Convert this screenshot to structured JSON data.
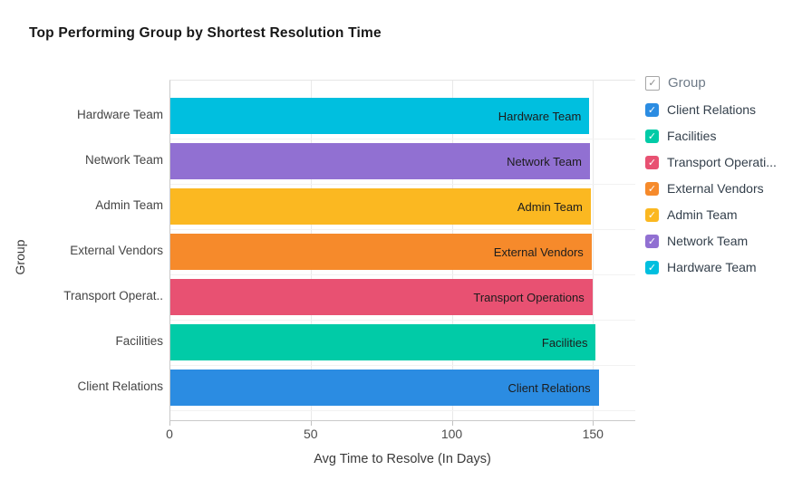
{
  "chart_data": {
    "type": "bar",
    "orientation": "horizontal",
    "title": "Top Performing Group by Shortest Resolution Time",
    "xlabel": "Avg Time to Resolve (In Days)",
    "ylabel": "Group",
    "categories": [
      "Hardware Team",
      "Network Team",
      "Admin Team",
      "External Vendors",
      "Transport Operations",
      "Facilities",
      "Client Relations"
    ],
    "axis_category_labels": [
      "Hardware Team",
      "Network Team",
      "Admin Team",
      "External Vendors",
      "Transport Operat..",
      "Facilities",
      "Client Relations"
    ],
    "bar_labels": [
      "Hardware Team",
      "Network Team",
      "Admin Team",
      "External Vendors",
      "Transport Operations",
      "Facilities",
      "Client Relations"
    ],
    "values": [
      148.7,
      148.9,
      149.2,
      149.5,
      149.8,
      151.0,
      152.0
    ],
    "bar_colors": [
      "#00bfdf",
      "#9170d2",
      "#fbb821",
      "#f68a2b",
      "#e85172",
      "#01cba7",
      "#2b8ce2"
    ],
    "xlim": [
      0,
      165
    ],
    "xticks": [
      0,
      50,
      100,
      150
    ],
    "grid": "vertical-only",
    "legend_position": "right"
  },
  "legend": {
    "header": {
      "label": "Group",
      "checked": true
    },
    "check_glyph": "✓",
    "items": [
      {
        "label": "Client Relations",
        "color": "#2b8ce2",
        "checked": true
      },
      {
        "label": "Facilities",
        "color": "#01cba7",
        "checked": true
      },
      {
        "label": "Transport Operati...",
        "color": "#e85172",
        "checked": true
      },
      {
        "label": "External Vendors",
        "color": "#f68a2b",
        "checked": true
      },
      {
        "label": "Admin Team",
        "color": "#fbb821",
        "checked": true
      },
      {
        "label": "Network Team",
        "color": "#9170d2",
        "checked": true
      },
      {
        "label": "Hardware Team",
        "color": "#00bfdf",
        "checked": true
      }
    ]
  },
  "style_colors": {
    "gridline": "#e9e9e9",
    "axis_line": "#c9c9c9",
    "row_separator": "#f2f2f2",
    "title_text": "#171717",
    "tick_text": "#4c4c4c"
  }
}
